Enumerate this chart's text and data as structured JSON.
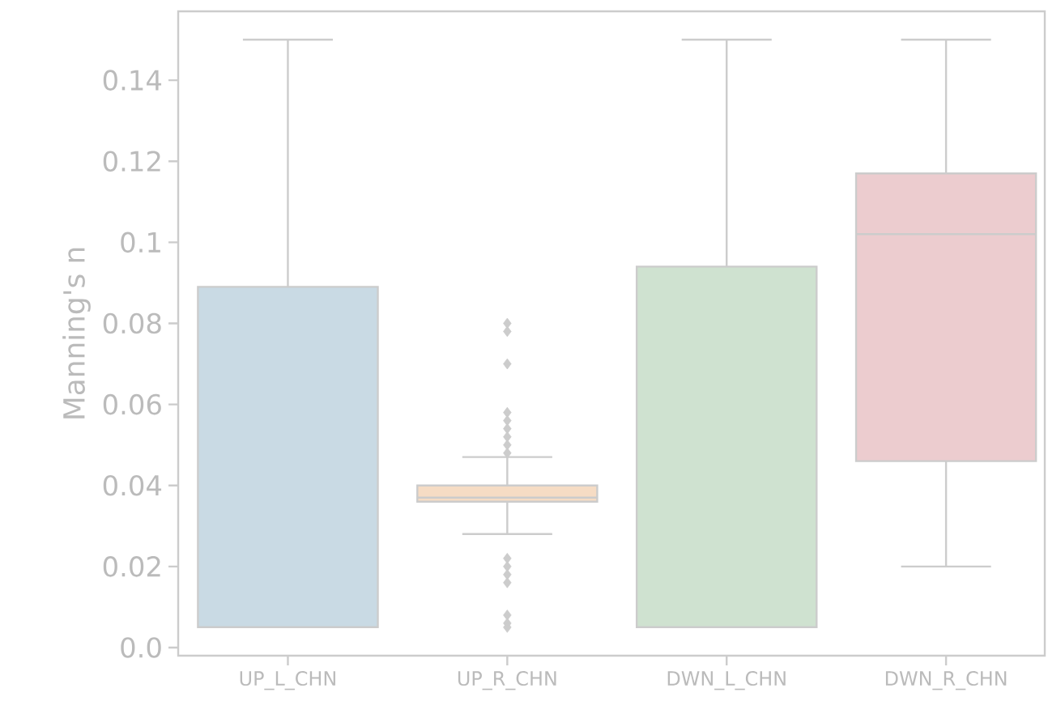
{
  "chart_data": {
    "type": "box",
    "ylabel": "Manning's n",
    "categories": [
      "UP_L_CHN",
      "UP_R_CHN",
      "DWN_L_CHN",
      "DWN_R_CHN"
    ],
    "colors": [
      "#c9dae4",
      "#f6dcc4",
      "#cfe2d0",
      "#eccccf"
    ],
    "boxes": [
      {
        "low": 0.005,
        "q1": 0.005,
        "median": 0.005,
        "q3": 0.089,
        "high": 0.15
      },
      {
        "low": 0.028,
        "q1": 0.036,
        "median": 0.037,
        "q3": 0.04,
        "high": 0.047,
        "outliers": [
          0.08,
          0.078,
          0.07,
          0.058,
          0.056,
          0.054,
          0.052,
          0.05,
          0.048,
          0.022,
          0.02,
          0.018,
          0.016,
          0.008,
          0.006,
          0.005
        ]
      },
      {
        "low": 0.005,
        "q1": 0.005,
        "median": 0.005,
        "q3": 0.094,
        "high": 0.15
      },
      {
        "low": 0.02,
        "q1": 0.046,
        "median": 0.102,
        "q3": 0.117,
        "high": 0.15
      }
    ],
    "ylim": [
      -0.002,
      0.157
    ],
    "yticks": [
      {
        "value": 0,
        "label": "0.0"
      },
      0.02,
      0.04,
      0.06,
      0.08,
      0.1,
      0.12,
      0.14
    ]
  }
}
